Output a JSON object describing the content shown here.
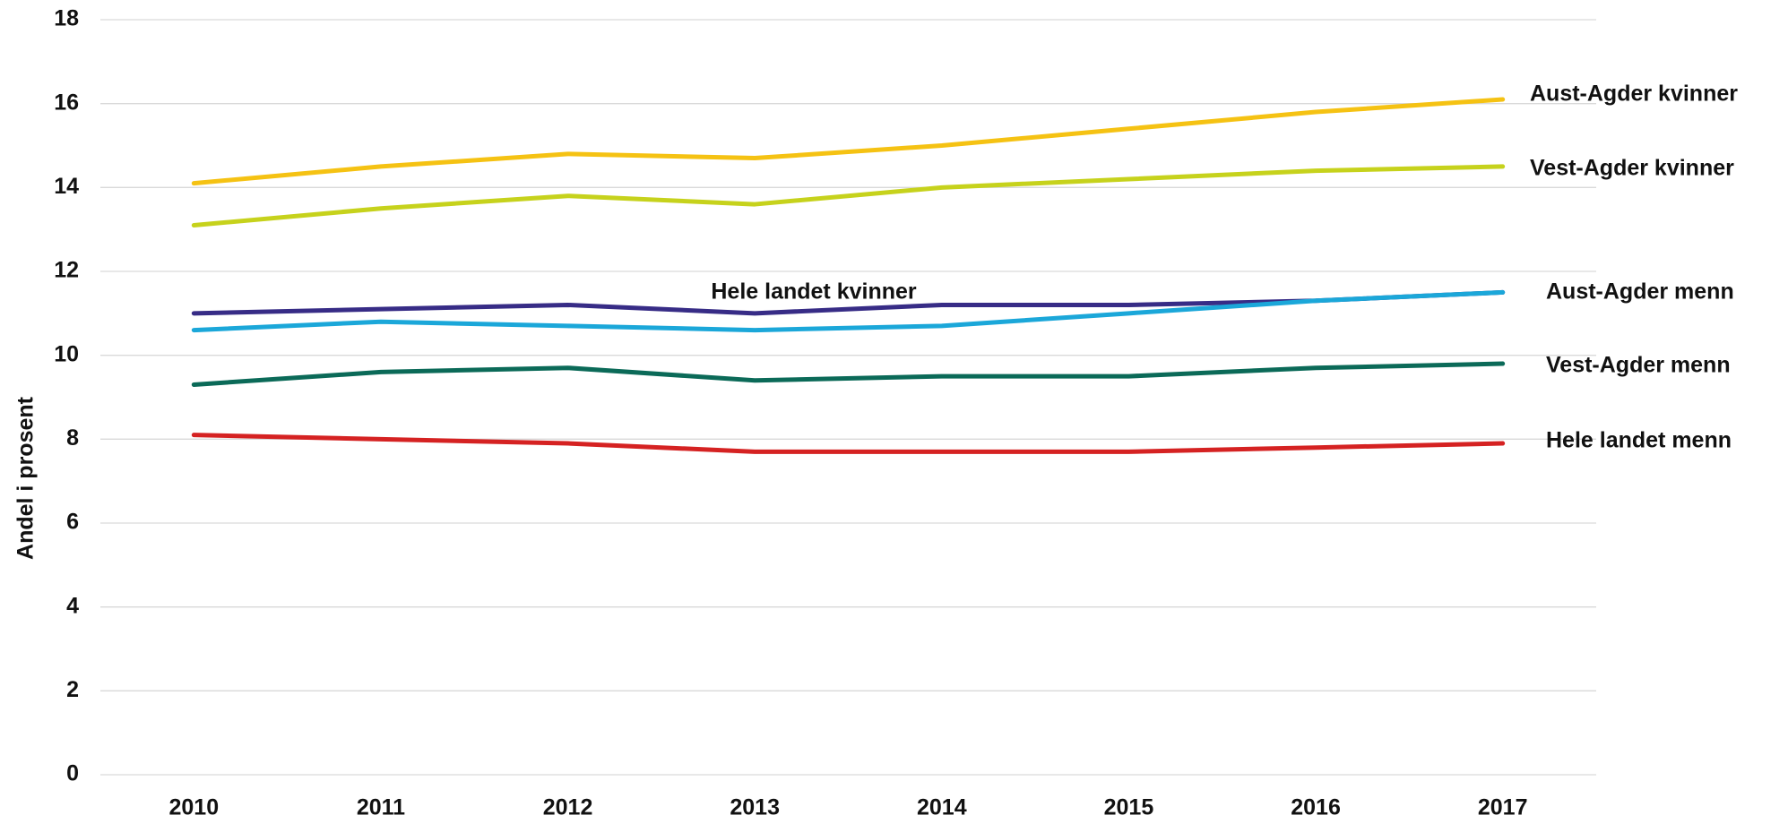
{
  "chart_data": {
    "type": "line",
    "y_label": "Andel i prosent",
    "categories": [
      "2010",
      "2011",
      "2012",
      "2013",
      "2014",
      "2015",
      "2016",
      "2017"
    ],
    "series": [
      {
        "name": "Aust-Agder kvinner",
        "color": "#f5c213",
        "values": [
          14.1,
          14.5,
          14.8,
          14.7,
          15.0,
          15.4,
          15.8,
          16.1
        ]
      },
      {
        "name": "Vest-Agder kvinner",
        "color": "#c6d21c",
        "values": [
          13.1,
          13.5,
          13.8,
          13.6,
          14.0,
          14.2,
          14.4,
          14.5
        ]
      },
      {
        "name": "Hele landet kvinner",
        "color": "#372c86",
        "values": [
          11.0,
          11.1,
          11.2,
          11.0,
          11.2,
          11.2,
          11.3,
          11.5
        ]
      },
      {
        "name": "Aust-Agder menn",
        "color": "#1ba7d9",
        "values": [
          10.6,
          10.8,
          10.7,
          10.6,
          10.7,
          11.0,
          11.3,
          11.5
        ]
      },
      {
        "name": "Vest-Agder menn",
        "color": "#0b6a58",
        "values": [
          9.3,
          9.6,
          9.7,
          9.4,
          9.5,
          9.5,
          9.7,
          9.8
        ]
      },
      {
        "name": "Hele landet menn",
        "color": "#d52222",
        "values": [
          8.1,
          8.0,
          7.9,
          7.7,
          7.7,
          7.7,
          7.8,
          7.9
        ]
      }
    ],
    "ylim": [
      0,
      18
    ],
    "yticks": [
      0,
      2,
      4,
      6,
      8,
      10,
      12,
      14,
      16,
      18
    ],
    "grid": true
  }
}
